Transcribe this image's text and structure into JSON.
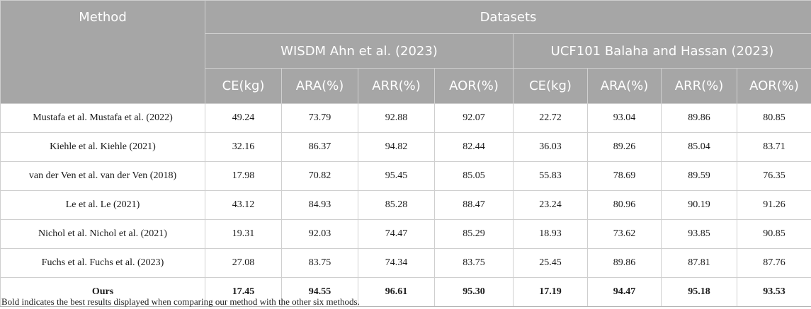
{
  "header": {
    "method": "Method",
    "datasets": "Datasets",
    "groups": [
      "WISDM Ahn et al. (2023)",
      "UCF101 Balaha and Hassan (2023)"
    ],
    "metrics": [
      "CE(kg)",
      "ARA(%)",
      "ARR(%)",
      "AOR(%)",
      "CE(kg)",
      "ARA(%)",
      "ARR(%)",
      "AOR(%)"
    ]
  },
  "rows": [
    {
      "method": "Mustafa et al. Mustafa et al. (2022)",
      "values": [
        "49.24",
        "73.79",
        "92.88",
        "92.07",
        "22.72",
        "93.04",
        "89.86",
        "80.85"
      ]
    },
    {
      "method": "Kiehle et al. Kiehle (2021)",
      "values": [
        "32.16",
        "86.37",
        "94.82",
        "82.44",
        "36.03",
        "89.26",
        "85.04",
        "83.71"
      ]
    },
    {
      "method": "van der Ven et al. van der Ven (2018)",
      "values": [
        "17.98",
        "70.82",
        "95.45",
        "85.05",
        "55.83",
        "78.69",
        "89.59",
        "76.35"
      ]
    },
    {
      "method": "Le et al. Le (2021)",
      "values": [
        "43.12",
        "84.93",
        "85.28",
        "88.47",
        "23.24",
        "80.96",
        "90.19",
        "91.26"
      ]
    },
    {
      "method": "Nichol et al. Nichol et al. (2021)",
      "values": [
        "19.31",
        "92.03",
        "74.47",
        "85.29",
        "18.93",
        "73.62",
        "93.85",
        "90.85"
      ]
    },
    {
      "method": "Fuchs et al. Fuchs et al. (2023)",
      "values": [
        "27.08",
        "83.75",
        "74.34",
        "83.75",
        "25.45",
        "89.86",
        "87.81",
        "87.76"
      ]
    },
    {
      "method": "Ours",
      "values": [
        "17.45",
        "94.55",
        "96.61",
        "95.30",
        "17.19",
        "94.47",
        "95.18",
        "93.53"
      ]
    }
  ],
  "footnote": "Bold indicates the best results displayed when comparing our method with the other six methods."
}
